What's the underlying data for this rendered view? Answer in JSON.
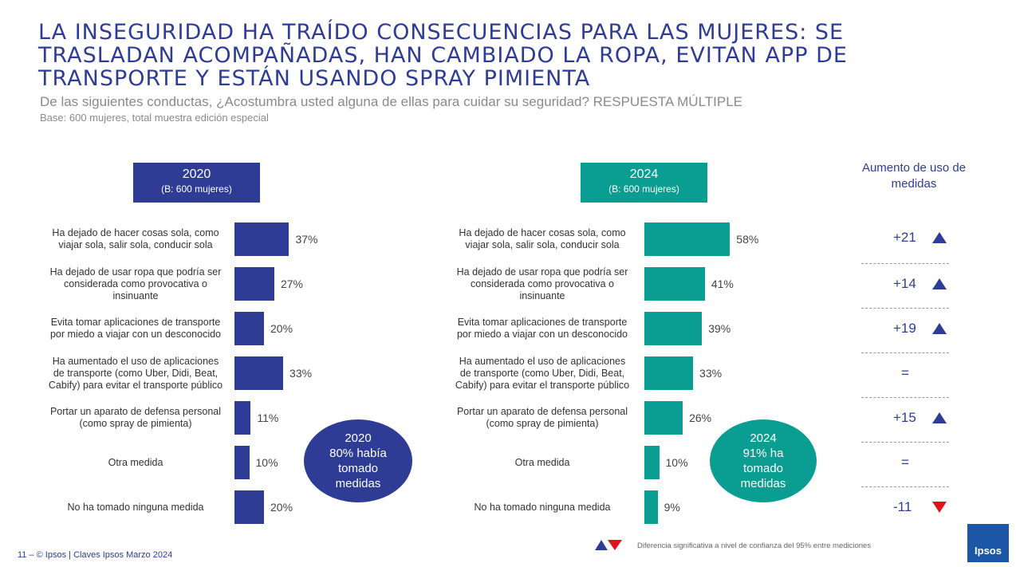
{
  "title": "LA INSEGURIDAD HA TRAÍDO CONSECUENCIAS PARA LAS MUJERES: SE TRASLADAN ACOMPAÑADAS, HAN CAMBIADO LA ROPA, EVITAN APP DE TRANSPORTE Y ESTÁN USANDO SPRAY PIMIENTA",
  "subtitle": "De las siguientes conductas, ¿Acostumbra usted alguna de ellas para cuidar su seguridad? RESPUESTA MÚLTIPLE",
  "base": "Base: 600 mujeres, total muestra edición especial",
  "colors": {
    "navy": "#2e3c96",
    "teal": "#0a9e93",
    "up": "#2e3c96",
    "down": "#e0151b"
  },
  "panel2020": {
    "year": "2020",
    "base": "(B: 600 mujeres)",
    "bubble": [
      "2020",
      "80% había",
      "tomado",
      "medidas"
    ]
  },
  "panel2024": {
    "year": "2024",
    "base": "(B: 600 mujeres)",
    "bubble": [
      "2024",
      "91% ha",
      "tomado",
      "medidas"
    ]
  },
  "aumento_title": "Aumento de uso de medidas",
  "deltas": [
    {
      "text": "+21",
      "dir": "up"
    },
    {
      "text": "+14",
      "dir": "up"
    },
    {
      "text": "+19",
      "dir": "up"
    },
    {
      "text": "=",
      "dir": "none"
    },
    {
      "text": "+15",
      "dir": "up"
    },
    {
      "text": "=",
      "dir": "none"
    },
    {
      "text": "-11",
      "dir": "down"
    }
  ],
  "footer": "11 –   © Ipsos | Claves Ipsos Marzo 2024",
  "footnote": "Diferencia significativa a nivel de confianza del 95% entre mediciones",
  "logo_text": "Ipsos",
  "chart_data": [
    {
      "type": "bar",
      "orientation": "horizontal",
      "title": "2020",
      "categories": [
        "Ha dejado de hacer cosas sola, como viajar sola, salir sola, conducir sola",
        "Ha dejado de usar ropa que podría ser considerada como provocativa o insinuante",
        "Evita tomar aplicaciones de transporte por miedo a viajar con un desconocido",
        "Ha aumentado el uso de aplicaciones de transporte (como Uber, Didi, Beat, Cabify) para evitar el transporte público",
        "Portar un aparato de defensa personal (como spray de pimienta)",
        "Otra medida",
        "No ha tomado ninguna medida"
      ],
      "values": [
        37,
        27,
        20,
        33,
        11,
        10,
        20
      ],
      "labels": [
        "37%",
        "27%",
        "20%",
        "33%",
        "11%",
        "10%",
        "20%"
      ]
    },
    {
      "type": "bar",
      "orientation": "horizontal",
      "title": "2024",
      "categories": [
        "Ha dejado de hacer cosas sola, como viajar sola, salir sola, conducir sola",
        "Ha dejado de usar ropa que podría ser considerada como provocativa o insinuante",
        "Evita tomar aplicaciones de transporte por miedo a viajar con un desconocido",
        "Ha aumentado el uso de aplicaciones de transporte (como Uber, Didi, Beat, Cabify) para evitar el transporte público",
        "Portar un aparato de defensa personal (como spray de pimienta)",
        "Otra medida",
        "No ha tomado ninguna medida"
      ],
      "values": [
        58,
        41,
        39,
        33,
        26,
        10,
        9
      ],
      "labels": [
        "58%",
        "41%",
        "39%",
        "33%",
        "26%",
        "10%",
        "9%"
      ]
    }
  ]
}
